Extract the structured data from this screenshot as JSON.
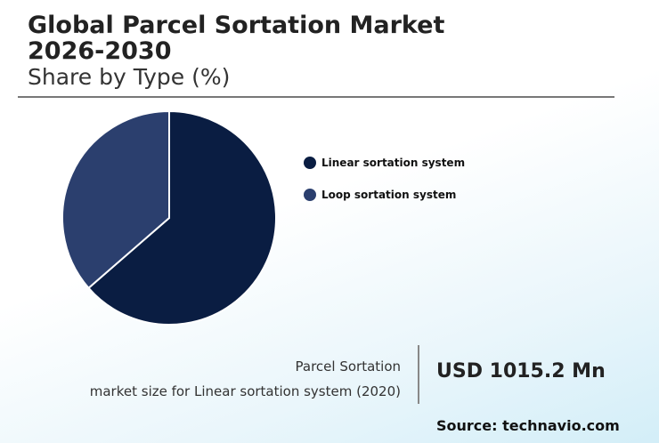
{
  "header": {
    "title_line1": "Global Parcel Sortation Market",
    "title_line2": "2026-2030",
    "subtitle": "Share by Type (%)"
  },
  "chart_data": {
    "type": "pie",
    "title": "Global Parcel Sortation Market 2026-2030",
    "subtitle": "Share by Type (%)",
    "categories": [
      "Linear sortation system",
      "Loop sortation system"
    ],
    "values": [
      63.6,
      36.4
    ],
    "colors": [
      "#0a1d42",
      "#2b3f6e"
    ],
    "legend_position": "right"
  },
  "callout": {
    "line1": "Parcel Sortation",
    "line2": "market size for Linear sortation system (2020)",
    "value": "USD 1015.2 Mn"
  },
  "source": "Source: technavio.com"
}
